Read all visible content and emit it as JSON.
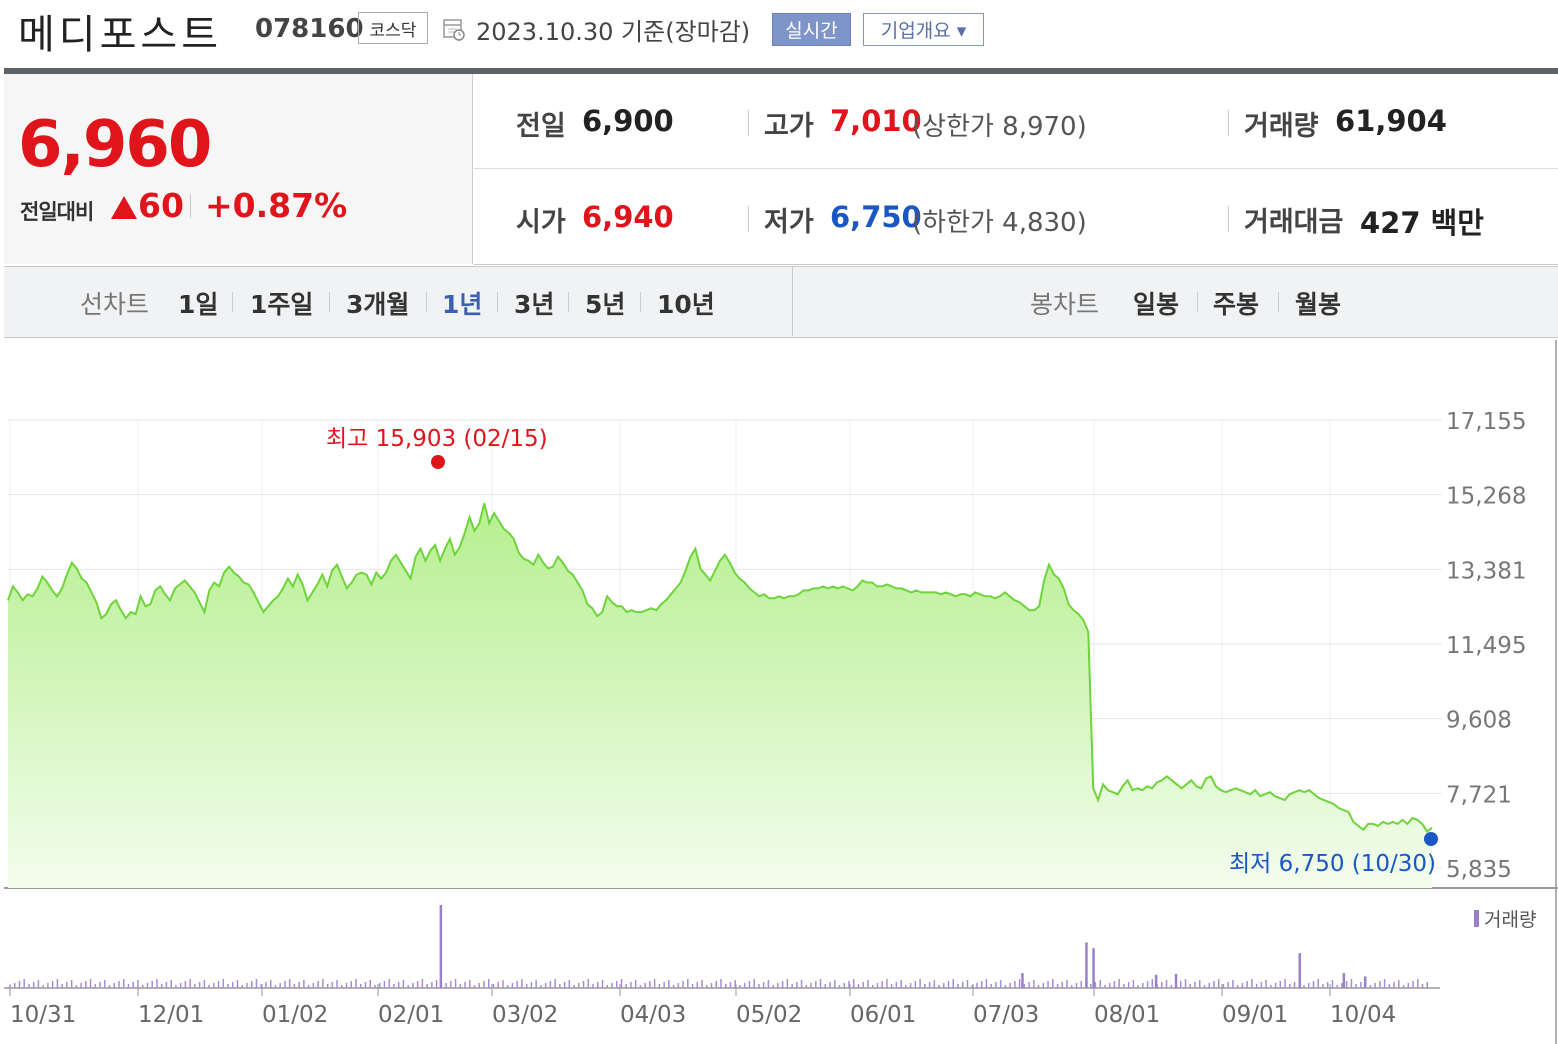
{
  "header": {
    "title": "메디포스트",
    "code": "078160",
    "market": "코스닥",
    "basis": "2023.10.30  기준(장마감)",
    "realtime_label": "실시간",
    "company_label": "기업개요 ▾"
  },
  "quote": {
    "price": "6,960",
    "change_label": "전일대비",
    "change_value": "60",
    "change_pct": "+0.87%",
    "prev_label": "전일",
    "prev_value": "6,900",
    "open_label": "시가",
    "open_value": "6,940",
    "high_label": "고가",
    "high_value": "7,010",
    "upper_limit": "(상한가 8,970)",
    "low_label": "저가",
    "low_value": "6,750",
    "lower_limit": "(하한가 4,830)",
    "volume_label": "거래량",
    "volume_value": "61,904",
    "amount_label": "거래대금",
    "amount_value": "427 백만",
    "colors": {
      "up": "#e0151b",
      "down": "#1a56c4"
    }
  },
  "nav": {
    "line_label": "선차트",
    "line_items": [
      "1일",
      "1주일",
      "3개월",
      "1년",
      "3년",
      "5년",
      "10년"
    ],
    "line_selected": "1년",
    "candle_label": "봉차트",
    "candle_items": [
      "일봉",
      "주봉",
      "월봉"
    ]
  },
  "chart_data": {
    "type": "area",
    "y_ticks": [
      "17,155",
      "15,268",
      "13,381",
      "11,495",
      "9,608",
      "7,721",
      "5,835"
    ],
    "ylim": [
      5835,
      17155
    ],
    "x_ticks": [
      "10/31",
      "12/01",
      "01/02",
      "02/01",
      "03/02",
      "04/03",
      "05/02",
      "06/01",
      "07/03",
      "08/01",
      "09/01",
      "10/04"
    ],
    "max_annotation": "최고 15,903 (02/15)",
    "min_annotation": "최저 6,750 (10/30)",
    "volume_label": "거래량",
    "price_series": [
      12600,
      12950,
      12800,
      12600,
      12750,
      12700,
      12900,
      13200,
      13050,
      12850,
      12700,
      12900,
      13250,
      13550,
      13400,
      13150,
      13050,
      12800,
      12550,
      12150,
      12250,
      12500,
      12600,
      12350,
      12150,
      12300,
      12250,
      12700,
      12450,
      12500,
      12850,
      12950,
      12750,
      12600,
      12900,
      13000,
      13100,
      12950,
      12800,
      12550,
      12300,
      12850,
      13050,
      12950,
      13300,
      13450,
      13300,
      13200,
      13050,
      13000,
      12800,
      12550,
      12300,
      12450,
      12600,
      12700,
      12900,
      13150,
      12950,
      13250,
      13000,
      12600,
      12800,
      13000,
      13250,
      12950,
      13350,
      13500,
      13200,
      12900,
      13050,
      13250,
      13300,
      13250,
      13000,
      13300,
      13150,
      13300,
      13600,
      13750,
      13550,
      13350,
      13150,
      13700,
      13900,
      13600,
      13850,
      14000,
      13600,
      13900,
      14150,
      13750,
      13950,
      14300,
      14700,
      14350,
      14550,
      15050,
      14550,
      14800,
      14600,
      14400,
      14300,
      14150,
      13800,
      13650,
      13600,
      13500,
      13750,
      13550,
      13400,
      13450,
      13700,
      13550,
      13350,
      13250,
      13050,
      12850,
      12500,
      12400,
      12200,
      12300,
      12700,
      12550,
      12450,
      12450,
      12300,
      12350,
      12300,
      12300,
      12350,
      12400,
      12350,
      12500,
      12600,
      12750,
      12900,
      13050,
      13350,
      13700,
      13900,
      13400,
      13250,
      13100,
      13350,
      13600,
      13750,
      13550,
      13300,
      13150,
      13050,
      12900,
      12800,
      12700,
      12750,
      12650,
      12650,
      12700,
      12650,
      12700,
      12700,
      12750,
      12850,
      12850,
      12900,
      12900,
      12950,
      12900,
      12950,
      12900,
      12950,
      12900,
      12850,
      12950,
      13100,
      13050,
      13050,
      12950,
      12950,
      13000,
      12950,
      12900,
      12900,
      12850,
      12800,
      12850,
      12800,
      12800,
      12800,
      12800,
      12750,
      12800,
      12750,
      12700,
      12750,
      12750,
      12700,
      12800,
      12750,
      12700,
      12700,
      12650,
      12700,
      12800,
      12700,
      12600,
      12550,
      12450,
      12350,
      12350,
      12450,
      13100,
      13500,
      13250,
      13150,
      12900,
      12500,
      12350,
      12250,
      12100,
      11800,
      7850,
      7550,
      7950,
      7800,
      7750,
      7700,
      7900,
      8050,
      7800,
      7850,
      7800,
      7900,
      7850,
      8000,
      8050,
      8150,
      8050,
      7950,
      7850,
      7950,
      8050,
      7900,
      7850,
      8100,
      8150,
      7900,
      7800,
      7750,
      7800,
      7850,
      7800,
      7750,
      7700,
      7800,
      7650,
      7700,
      7750,
      7650,
      7600,
      7550,
      7700,
      7750,
      7800,
      7750,
      7800,
      7700,
      7600,
      7550,
      7500,
      7450,
      7350,
      7300,
      7250,
      7000,
      6900,
      6800,
      6950,
      6950,
      6900,
      7000,
      6950,
      7000,
      6950,
      7050,
      6950,
      7100,
      7050,
      6950,
      6760,
      6850
    ],
    "volume_spikes": [
      {
        "at": 0.303,
        "value": 1.0
      },
      {
        "at": 0.757,
        "value": 0.55
      },
      {
        "at": 0.762,
        "value": 0.48
      },
      {
        "at": 0.907,
        "value": 0.42
      },
      {
        "at": 0.712,
        "value": 0.18
      },
      {
        "at": 0.938,
        "value": 0.18
      },
      {
        "at": 0.806,
        "value": 0.16
      },
      {
        "at": 0.82,
        "value": 0.17
      },
      {
        "at": 0.953,
        "value": 0.14
      }
    ]
  }
}
